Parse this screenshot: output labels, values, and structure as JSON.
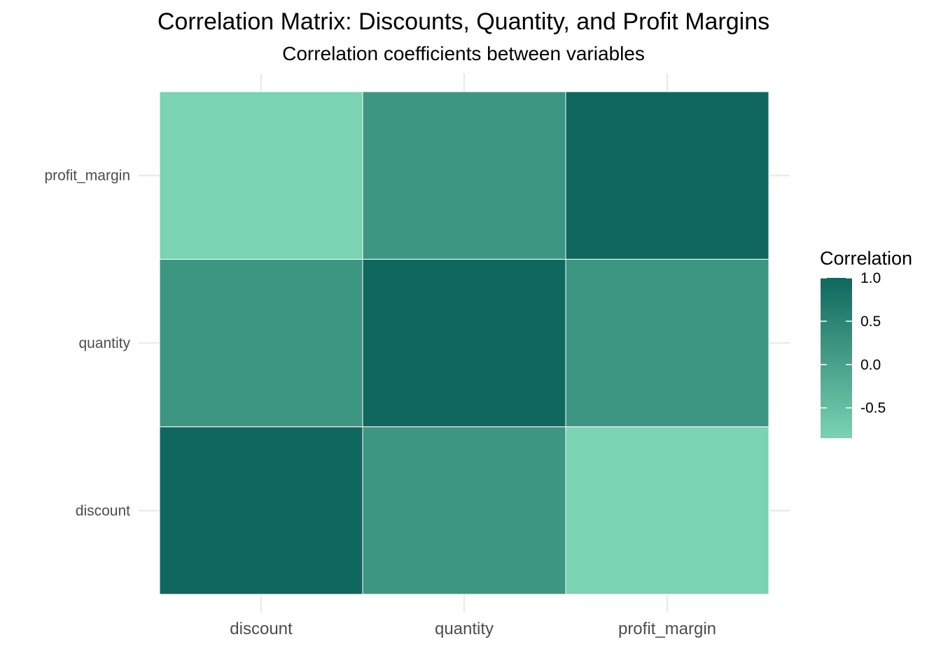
{
  "chart_data": {
    "type": "heatmap",
    "title": "Correlation Matrix: Discounts, Quantity, and Profit Margins",
    "subtitle": "Correlation coefficients between variables",
    "xlabel": "",
    "ylabel": "",
    "x_categories": [
      "discount",
      "quantity",
      "profit_margin"
    ],
    "y_categories": [
      "discount",
      "quantity",
      "profit_margin"
    ],
    "matrix": [
      [
        1.0,
        0.2,
        -0.85
      ],
      [
        0.2,
        1.0,
        0.2
      ],
      [
        -0.85,
        0.2,
        1.0
      ]
    ],
    "legend": {
      "title": "Correlation",
      "position": "right",
      "ticks": [
        1.0,
        0.5,
        0.0,
        -0.5
      ],
      "tick_labels": [
        "1.0",
        "0.5",
        "0.0",
        "-0.5"
      ],
      "range": [
        -0.85,
        1.0
      ]
    },
    "color_scale": {
      "low": "#7ad3b2",
      "high": "#0f675d"
    },
    "grid": true
  }
}
